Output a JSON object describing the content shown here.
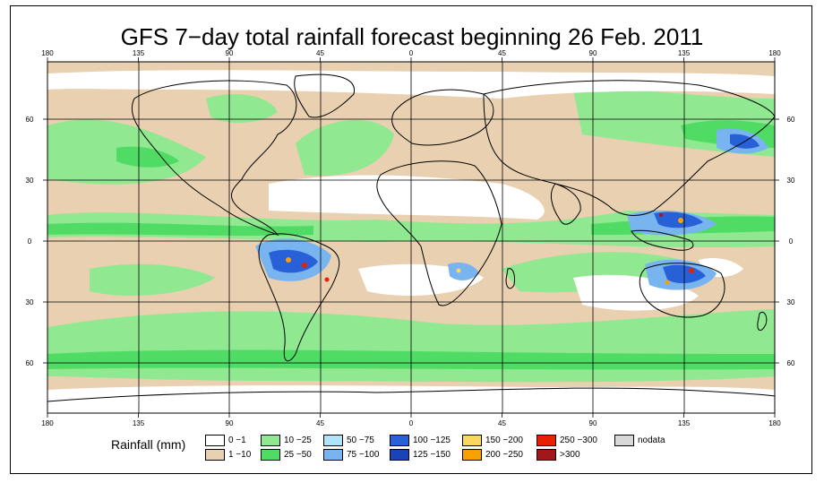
{
  "title": "GFS 7−day total rainfall forecast beginning 26 Feb. 2011",
  "map": {
    "lon_ticks": [
      "180",
      "135",
      "90",
      "45",
      "0",
      "45",
      "90",
      "135",
      "180"
    ],
    "lat_ticks": [
      "60",
      "30",
      "0",
      "30",
      "60"
    ],
    "ocean_color": "#e8d0b0",
    "land_color": "#ffffff"
  },
  "legend": {
    "title": "Rainfall (mm)",
    "items": [
      {
        "label": "0 −1",
        "color": "#ffffff"
      },
      {
        "label": "1 −10",
        "color": "#e8d0b0"
      },
      {
        "label": "10 −25",
        "color": "#90e890"
      },
      {
        "label": "25 −50",
        "color": "#50dc64"
      },
      {
        "label": "50 −75",
        "color": "#b0e4f8"
      },
      {
        "label": "75 −100",
        "color": "#78b4f0"
      },
      {
        "label": "100 −125",
        "color": "#2860d8"
      },
      {
        "label": "125 −150",
        "color": "#1844b8"
      },
      {
        "label": "150 −200",
        "color": "#f8d860"
      },
      {
        "label": "200 −250",
        "color": "#f8a000"
      },
      {
        "label": "250 −300",
        "color": "#e82000"
      },
      {
        "label": ">300",
        "color": "#a01818"
      },
      {
        "label": "nodata",
        "color": "#d8d8d8"
      }
    ]
  }
}
